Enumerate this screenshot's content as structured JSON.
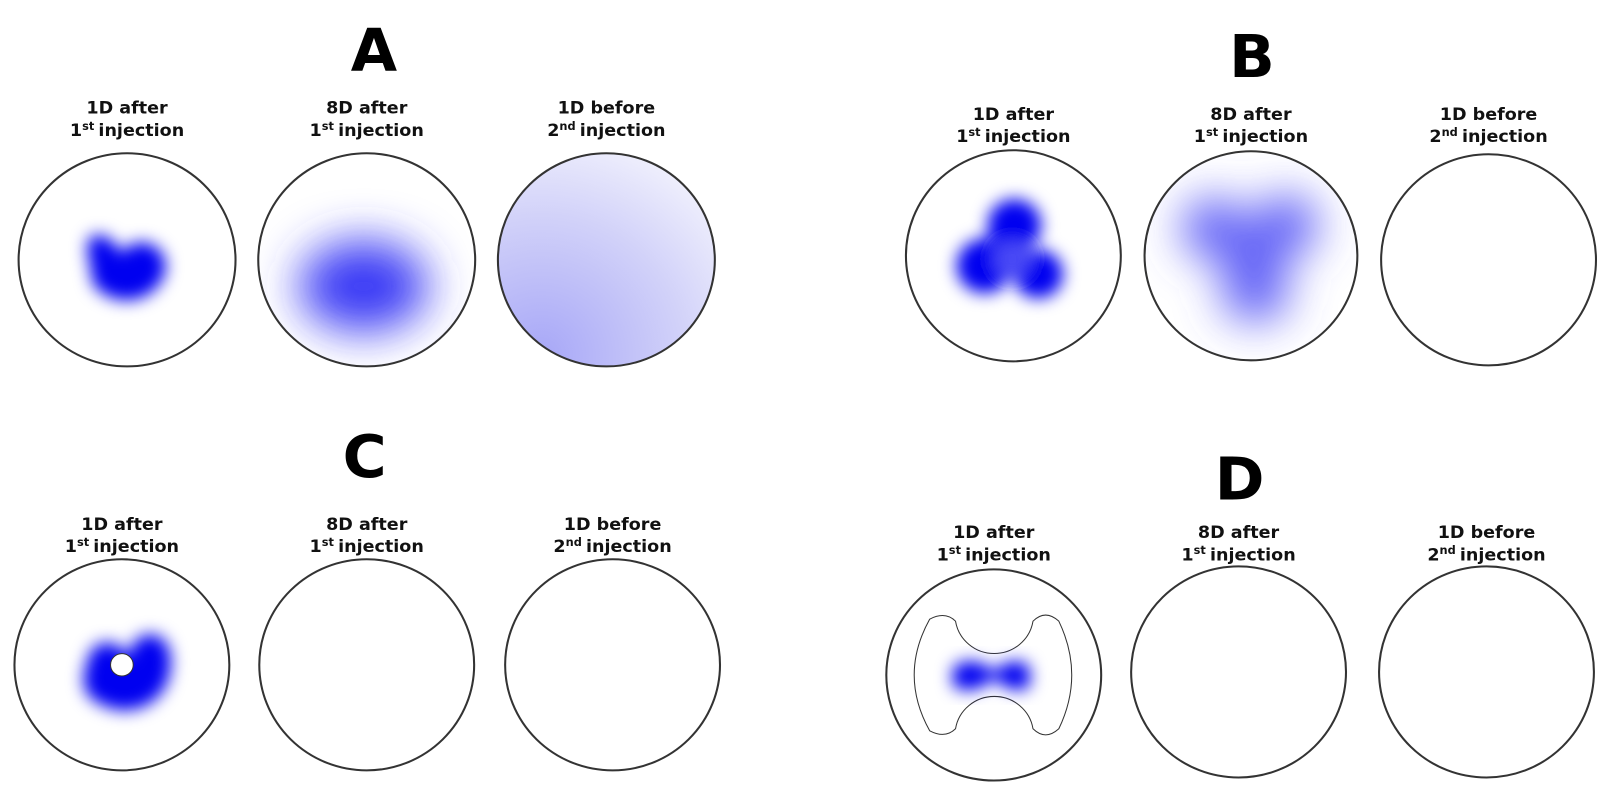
{
  "panels": [
    {
      "letter": "A",
      "columns": [
        {
          "line1": "1D after",
          "num": "1",
          "sup": "st",
          "suffix": "injection"
        },
        {
          "line1": "8D after",
          "num": "1",
          "sup": "st",
          "suffix": "injection"
        },
        {
          "line1": "1D before",
          "num": "2",
          "sup": "nd",
          "suffix": "injection"
        }
      ]
    },
    {
      "letter": "B",
      "columns": [
        {
          "line1": "1D after",
          "num": "1",
          "sup": "st",
          "suffix": "injection"
        },
        {
          "line1": "8D after",
          "num": "1",
          "sup": "st",
          "suffix": "injection"
        },
        {
          "line1": "1D before",
          "num": "2",
          "sup": "nd",
          "suffix": "injection"
        }
      ]
    },
    {
      "letter": "C",
      "columns": [
        {
          "line1": "1D after",
          "num": "1",
          "sup": "st",
          "suffix": "injection"
        },
        {
          "line1": "8D after",
          "num": "1",
          "sup": "st",
          "suffix": "injection"
        },
        {
          "line1": "1D before",
          "num": "2",
          "sup": "nd",
          "suffix": "injection"
        }
      ]
    },
    {
      "letter": "D",
      "columns": [
        {
          "line1": "1D after",
          "num": "1",
          "sup": "st",
          "suffix": "injection"
        },
        {
          "line1": "8D after",
          "num": "1",
          "sup": "st",
          "suffix": "injection"
        },
        {
          "line1": "1D before",
          "num": "2",
          "sup": "nd",
          "suffix": "injection"
        }
      ]
    }
  ]
}
